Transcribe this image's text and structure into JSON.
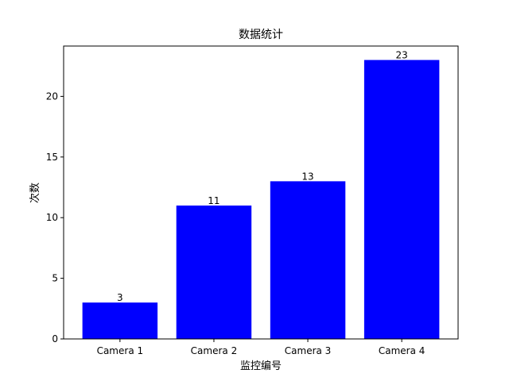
{
  "chart_data": {
    "type": "bar",
    "title": "数据统计",
    "xlabel": "监控编号",
    "ylabel": "次数",
    "categories": [
      "Camera 1",
      "Camera 2",
      "Camera 3",
      "Camera 4"
    ],
    "values": [
      3,
      11,
      13,
      23
    ],
    "data_labels": [
      "3",
      "11",
      "13",
      "23"
    ],
    "ylim": [
      0,
      24.15
    ],
    "yticks": [
      0,
      5,
      10,
      15,
      20
    ],
    "grid": false,
    "bar_color": "#0000ff"
  }
}
